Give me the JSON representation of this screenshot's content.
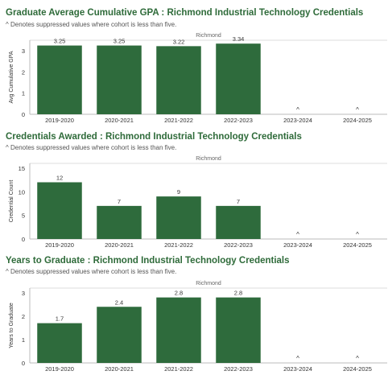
{
  "chart_data": [
    {
      "type": "bar",
      "title": "Graduate Average Cumulative GPA : Richmond Industrial Technology Credentials",
      "note": "^ Denotes suppressed values where cohort is less than five.",
      "panel_label": "Richmond",
      "ylabel": "Avg Cumulative GPA",
      "ylim": [
        0,
        3.5
      ],
      "yticks": [
        0,
        1,
        2,
        3
      ],
      "categories": [
        "2019-2020",
        "2020-2021",
        "2021-2022",
        "2022-2023",
        "2023-2024",
        "2024-2025"
      ],
      "values": [
        3.25,
        3.25,
        3.22,
        3.34,
        null,
        null
      ],
      "labels": [
        "3.25",
        "3.25",
        "3.22",
        "3.34",
        "^",
        "^"
      ]
    },
    {
      "type": "bar",
      "title": "Credentials Awarded : Richmond Industrial Technology Credentials",
      "note": "^ Denotes suppressed values where cohort is less than five.",
      "panel_label": "Richmond",
      "ylabel": "Credential Count",
      "ylim": [
        0,
        16
      ],
      "yticks": [
        0,
        5,
        10,
        15
      ],
      "categories": [
        "2019-2020",
        "2020-2021",
        "2021-2022",
        "2022-2023",
        "2023-2024",
        "2024-2025"
      ],
      "values": [
        12,
        7,
        9,
        7,
        null,
        null
      ],
      "labels": [
        "12",
        "7",
        "9",
        "7",
        "^",
        "^"
      ]
    },
    {
      "type": "bar",
      "title": "Years to Graduate : Richmond Industrial Technology Credentials",
      "note": "^ Denotes suppressed values where cohort is less than five.",
      "panel_label": "Richmond",
      "ylabel": "Years to Graduate",
      "ylim": [
        0,
        3.2
      ],
      "yticks": [
        0,
        1,
        2,
        3
      ],
      "categories": [
        "2019-2020",
        "2020-2021",
        "2021-2022",
        "2022-2023",
        "2023-2024",
        "2024-2025"
      ],
      "values": [
        1.7,
        2.4,
        2.8,
        2.8,
        null,
        null
      ],
      "labels": [
        "1.7",
        "2.4",
        "2.8",
        "2.8",
        "^",
        "^"
      ]
    }
  ],
  "colors": {
    "bar": "#2e6b3c",
    "title": "#2f6b3a",
    "axis": "#bbbbbb",
    "text": "#333333",
    "muted": "#666666"
  }
}
